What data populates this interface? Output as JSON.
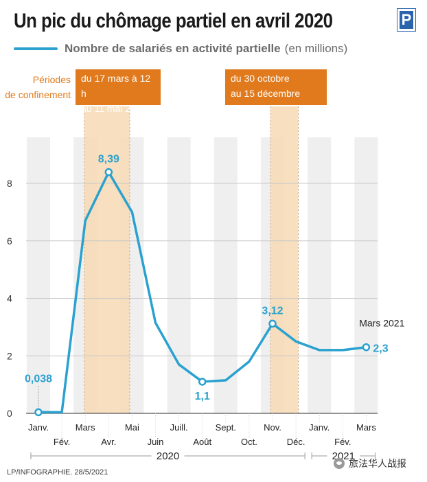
{
  "header": {
    "title": "Un pic du chômage partiel en avril 2020",
    "logo_text": "P"
  },
  "legend": {
    "label": "Nombre de salariés en activité partielle",
    "unit": "(en millions)"
  },
  "annotations": {
    "periods_label": "Périodes\nde confinement",
    "period_1": "du 17 mars à 12 h\nau 11 mai 2020",
    "period_2": "du 30 octobre\nau 15 décembre 2020",
    "last_month_label": "Mars 2021"
  },
  "colors": {
    "line": "#2aa1cf",
    "period_band": "#f6d9b4",
    "period_box": "#e07a1c",
    "column_shade": "#efefef",
    "gridline": "#c8c8c8",
    "text": "#1a1a1a"
  },
  "chart_data": {
    "type": "line",
    "series": [
      {
        "values": [
          0.038,
          0.04,
          6.7,
          8.39,
          7.0,
          3.15,
          1.7,
          1.1,
          1.15,
          1.8,
          3.12,
          2.5,
          2.2,
          2.2,
          2.3
        ]
      }
    ],
    "categories": [
      "Janv.",
      "Fév.",
      "Mars",
      "Avr.",
      "Mai",
      "Juin",
      "Juill.",
      "Août",
      "Sept.",
      "Oct.",
      "Nov.",
      "Déc.",
      "Janv.",
      "Fév.",
      "Mars"
    ],
    "years": [
      {
        "label": "2020",
        "from": 0,
        "to": 11
      },
      {
        "label": "2021",
        "from": 12,
        "to": 14
      }
    ],
    "data_labels": [
      {
        "index": 0,
        "text": "0,038"
      },
      {
        "index": 3,
        "text": "8,39"
      },
      {
        "index": 7,
        "text": "1,1"
      },
      {
        "index": 10,
        "text": "3,12"
      },
      {
        "index": 14,
        "text": "2,3"
      }
    ],
    "ylim": [
      0,
      9
    ],
    "yticks": [
      0,
      2,
      4,
      6,
      8
    ],
    "periods": [
      {
        "from": 2.0,
        "to": 3.8
      },
      {
        "from": 9.95,
        "to": 11.0
      }
    ],
    "grid": true,
    "xlabel": "",
    "ylabel": ""
  },
  "footer": {
    "credit": "LP/INFOGRAPHIE.  28/5/2021",
    "wechat": "旅法华人战报"
  }
}
